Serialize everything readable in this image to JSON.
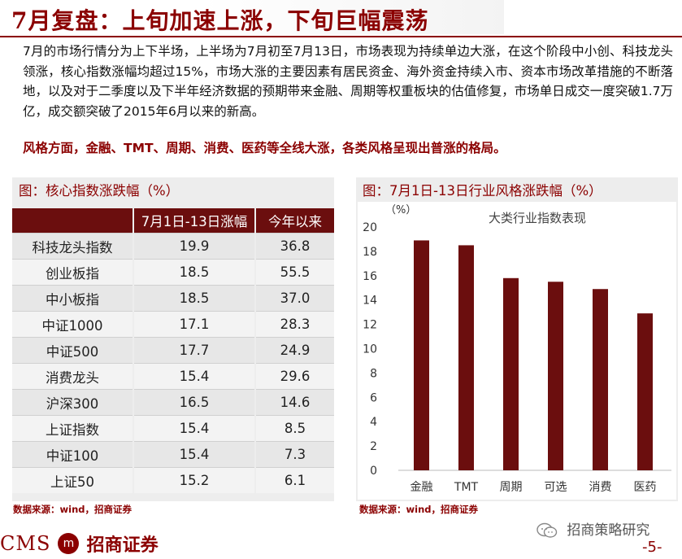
{
  "title": "7月复盘：上旬加速上涨，下旬巨幅震荡",
  "paragraph": "7月的市场行情分为上下半场，上半场为7月初至7月13日，市场表现为持续单边大涨，在这个阶段中小创、科技龙头领涨，核心指数涨幅均超过15%，市场大涨的主要因素有居民资金、海外资金持续入市、资本市场改革措施的不断落地，以及对于二季度以及下半年经济数据的预期带来金融、周期等权重板块的估值修复，市场单日成交一度突破1.7万亿，成交额突破了2015年6月以来的新高。",
  "highlight": "风格方面，金融、TMT、周期、消费、医药等全线大涨，各类风格呈现出普涨的格局。",
  "left_panel": {
    "caption": "图：核心指数涨跌幅（%）",
    "headers": [
      "",
      "7月1日-13日涨幅",
      "今年以来"
    ],
    "rows": [
      {
        "name": "科技龙头指数",
        "jul": "19.9",
        "ytd": "36.8"
      },
      {
        "name": "创业板指",
        "jul": "18.5",
        "ytd": "55.5"
      },
      {
        "name": "中小板指",
        "jul": "18.5",
        "ytd": "37.0"
      },
      {
        "name": "中证1000",
        "jul": "17.1",
        "ytd": "28.3"
      },
      {
        "name": "中证500",
        "jul": "17.7",
        "ytd": "24.9"
      },
      {
        "name": "消费龙头",
        "jul": "15.4",
        "ytd": "29.6"
      },
      {
        "name": "沪深300",
        "jul": "16.5",
        "ytd": "14.6"
      },
      {
        "name": "上证指数",
        "jul": "15.4",
        "ytd": "8.5"
      },
      {
        "name": "中证100",
        "jul": "15.4",
        "ytd": "7.3"
      },
      {
        "name": "上证50",
        "jul": "15.2",
        "ytd": "6.1"
      }
    ],
    "source": "数据来源：wind，招商证券"
  },
  "right_panel": {
    "caption": "图：7月1日-13日行业风格涨跌幅（%）",
    "source": "数据来源：wind，招商证券"
  },
  "chart_data": {
    "type": "bar",
    "title": "大类行业指数表现",
    "ylabel": "（%）",
    "xlabel": "",
    "categories": [
      "金融",
      "TMT",
      "周期",
      "可选",
      "消费",
      "医药"
    ],
    "values": [
      18.9,
      18.5,
      15.8,
      15.5,
      14.9,
      12.9
    ],
    "ylim": [
      0,
      20
    ],
    "yticks": [
      0,
      2,
      4,
      6,
      8,
      10,
      12,
      14,
      16,
      18,
      20
    ],
    "grid": false,
    "legend": "none",
    "bar_color": "#6b0e0e"
  },
  "footer": {
    "logo_cms": "CMS",
    "logo_badge": "m",
    "logo_cn": "招商证券",
    "wechat_label": "招商策略研究",
    "page_number": "-5-"
  },
  "colors": {
    "brand": "#8b0000",
    "header_bg": "#6b0e0e",
    "panel_bg": "#ededed"
  }
}
